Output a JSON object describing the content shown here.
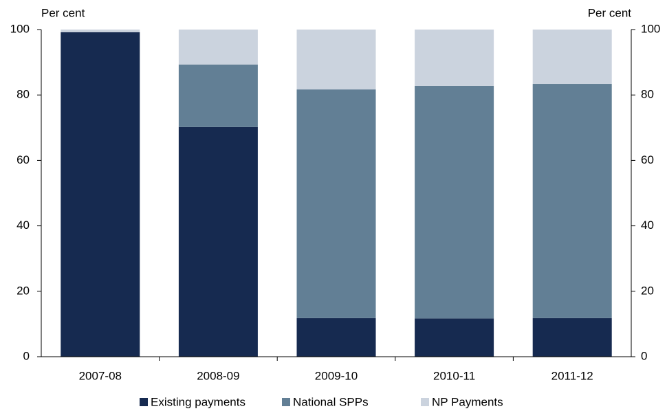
{
  "chart_data": {
    "type": "stacked_bar",
    "y_label": "Per cent",
    "y2_label": "Per cent",
    "categories": [
      "2007-08",
      "2008-09",
      "2009-10",
      "2010-11",
      "2011-12"
    ],
    "series": [
      {
        "name": "Existing payments",
        "color": "#162a50",
        "values": [
          99.2,
          70.2,
          11.8,
          11.7,
          11.8
        ]
      },
      {
        "name": "National SPPs",
        "color": "#627f95",
        "values": [
          0,
          19.1,
          69.9,
          71.1,
          71.6
        ]
      },
      {
        "name": "NP Payments",
        "color": "#cbd3de",
        "values": [
          0.8,
          10.7,
          18.3,
          17.2,
          16.6
        ]
      }
    ],
    "ylim": [
      0,
      100
    ],
    "yticks": [
      0,
      20,
      40,
      60,
      80,
      100
    ],
    "y2lim": [
      0,
      100
    ],
    "y2ticks": [
      0,
      20,
      40,
      60,
      80,
      100
    ],
    "grid": false,
    "legend": "bottom"
  }
}
